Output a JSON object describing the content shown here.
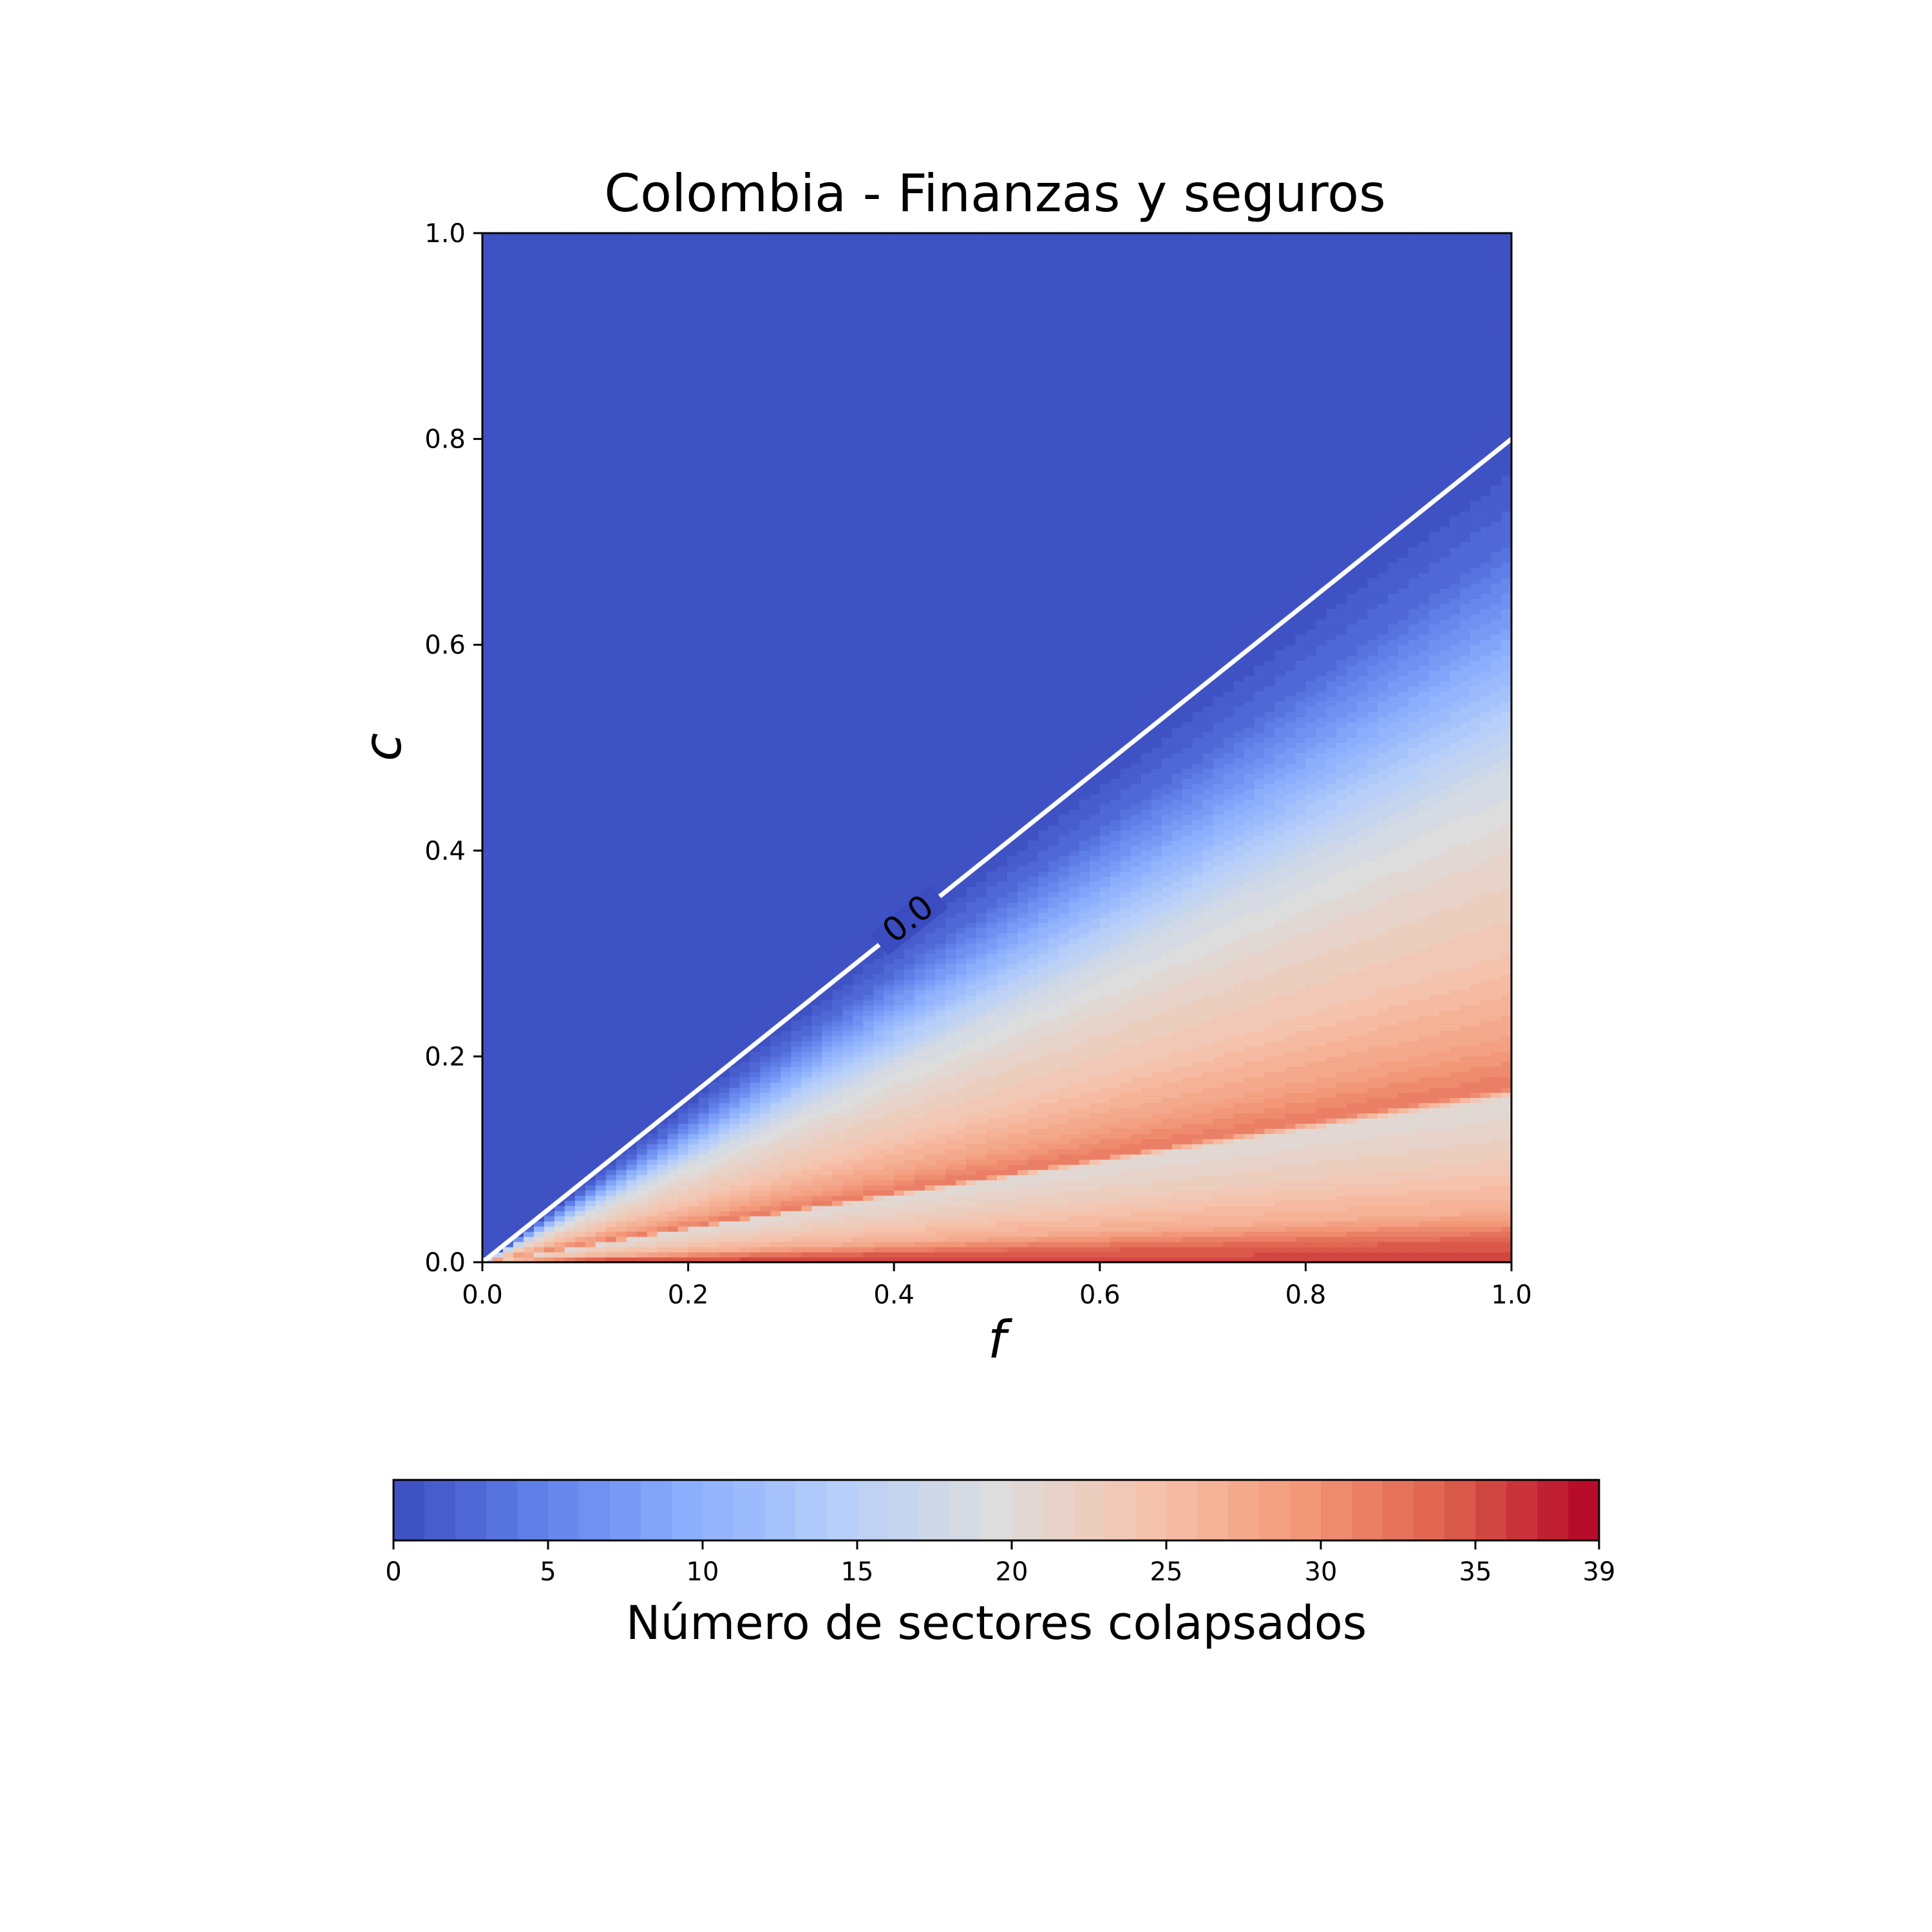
{
  "chart_data": {
    "type": "heatmap",
    "title": "Colombia - Finanzas y seguros",
    "xlabel": "f",
    "ylabel": "c",
    "xlim": [
      0.0,
      1.0
    ],
    "ylim": [
      0.0,
      1.0
    ],
    "xticks": [
      "0.0",
      "0.2",
      "0.4",
      "0.6",
      "0.8",
      "1.0"
    ],
    "yticks": [
      "0.0",
      "0.2",
      "0.4",
      "0.6",
      "0.8",
      "1.0"
    ],
    "grid": false,
    "colormap": "coolwarm",
    "colorbar": {
      "label": "Número de sectores colapsados",
      "range": [
        0,
        39
      ],
      "levels": 39,
      "orientation": "horizontal",
      "placement": "bottom",
      "ticks": [
        "0",
        "5",
        "10",
        "15",
        "20",
        "25",
        "30",
        "35",
        "39"
      ]
    },
    "contour": {
      "level": 0.0,
      "label": "0.0",
      "color": "#ffffff",
      "points": [
        [
          0.0,
          0.0
        ],
        [
          0.2,
          0.16
        ],
        [
          0.4,
          0.32
        ],
        [
          0.6,
          0.48
        ],
        [
          0.8,
          0.64
        ],
        [
          1.0,
          0.8
        ]
      ]
    },
    "description_of_field": [
      {
        "ratio_c_over_f": 0.8,
        "value": 0
      },
      {
        "ratio_c_over_f": 0.7,
        "value": 3
      },
      {
        "ratio_c_over_f": 0.62,
        "value": 8
      },
      {
        "ratio_c_over_f": 0.55,
        "value": 13
      },
      {
        "ratio_c_over_f": 0.48,
        "value": 18
      },
      {
        "ratio_c_over_f": 0.4,
        "value": 21
      },
      {
        "ratio_c_over_f": 0.3,
        "value": 24
      },
      {
        "ratio_c_over_f": 0.22,
        "value": 28
      },
      {
        "ratio_c_over_f": 0.17,
        "value": 32
      },
      {
        "ratio_c_over_f": 0.16,
        "value": 20
      },
      {
        "ratio_c_over_f": 0.1,
        "value": 23
      },
      {
        "ratio_c_over_f": 0.05,
        "value": 27
      },
      {
        "ratio_c_over_f": 0.02,
        "value": 34
      },
      {
        "ratio_c_over_f": 0.0,
        "value": 36
      }
    ]
  }
}
